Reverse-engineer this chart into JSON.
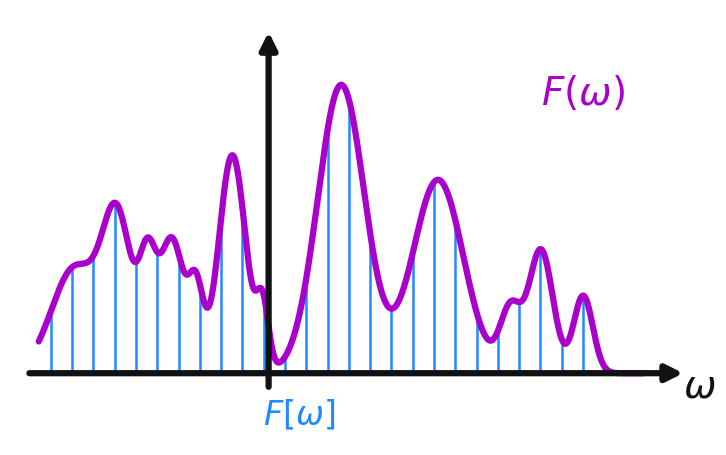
{
  "bg_color": "#ffffff",
  "curve_color": "#aa00cc",
  "bar_color": "#2288ff",
  "axes_color": "#111111",
  "curve_lw": 4.5,
  "bar_lw": 1.8,
  "axis_lw": 4.5,
  "n_bars": 28,
  "figsize": [
    7.26,
    4.56
  ],
  "dpi": 100
}
